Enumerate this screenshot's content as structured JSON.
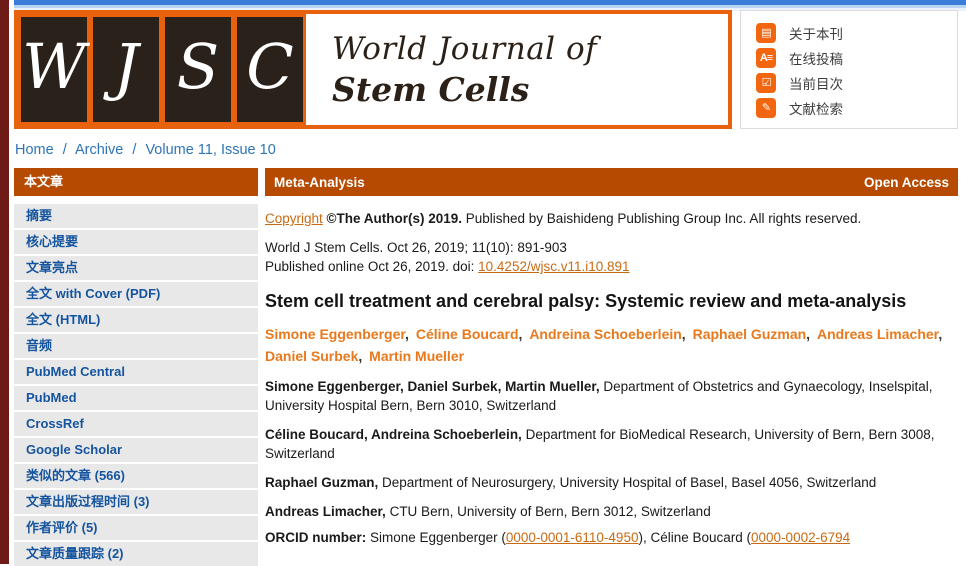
{
  "colors": {
    "left_strip_maroon": "#6E1B18",
    "top_bar_blue": "#3B7CD8",
    "brand_orange": "#E8620E",
    "icon_orange": "#F2660F",
    "section_bar_rust": "#B54A00",
    "link_orange": "#C96A12",
    "author_orange": "#E8791C",
    "sidebar_link_blue": "#15549E",
    "breadcrumb_blue": "#2E74B5"
  },
  "header": {
    "logo_letters": [
      "W",
      "J",
      "S",
      "C"
    ],
    "journal_name_line1": "World Journal of",
    "journal_name_line2": "Stem Cells",
    "menu": [
      {
        "label": "关于本刊",
        "icon": "about-journal-icon",
        "glyph": "▤"
      },
      {
        "label": "在线投稿",
        "icon": "online-submission-icon",
        "glyph": "A≡"
      },
      {
        "label": "当前目次",
        "icon": "current-issue-icon",
        "glyph": "☑"
      },
      {
        "label": "文献检索",
        "icon": "literature-search-icon",
        "glyph": "✎"
      }
    ]
  },
  "breadcrumb": {
    "separator": "/",
    "items": [
      "Home",
      "Archive",
      "Volume 11, Issue 10"
    ]
  },
  "sidebar": {
    "header": "本文章",
    "items": [
      "摘要",
      "核心提要",
      "文章亮点",
      "全文 with Cover (PDF)",
      "全文 (HTML)",
      "音频",
      "PubMed Central",
      "PubMed",
      "CrossRef",
      "Google Scholar",
      "类似的文章 (566)",
      "文章出版过程时间 (3)",
      "作者评价 (5)",
      "文章质量跟踪 (2)"
    ]
  },
  "main": {
    "article_type": "Meta-Analysis",
    "access_label": "Open Access",
    "authors_separator": ", ",
    "copyright": {
      "link_text": "Copyright",
      "bold_text": " ©The Author(s) 2019.",
      "rest_text": " Published by Baishideng Publishing Group Inc. All rights reserved."
    },
    "citation": {
      "line1": "World J Stem Cells. Oct 26, 2019; 11(10): 891-903",
      "line2_prefix": "Published online Oct 26, 2019. doi: ",
      "doi_link": "10.4252/wjsc.v11.i10.891"
    },
    "title": "Stem cell treatment and cerebral palsy: Systemic review and meta-analysis",
    "authors": [
      "Simone Eggenberger",
      "Céline Boucard",
      "Andreina Schoeberlein",
      "Raphael Guzman",
      "Andreas Limacher",
      "Daniel Surbek",
      "Martin Mueller"
    ],
    "affiliations": [
      {
        "names": "Simone Eggenberger, Daniel Surbek, Martin Mueller,",
        "detail": " Department of Obstetrics and Gynaecology, Inselspital, University Hospital Bern, Bern 3010, Switzerland"
      },
      {
        "names": "Céline Boucard, Andreina Schoeberlein,",
        "detail": " Department for BioMedical Research, University of Bern, Bern 3008, Switzerland"
      },
      {
        "names": "Raphael Guzman,",
        "detail": " Department of Neurosurgery, University Hospital of Basel, Basel 4056, Switzerland"
      },
      {
        "names": "Andreas Limacher,",
        "detail": " CTU Bern, University of Bern, Bern 3012, Switzerland"
      }
    ],
    "orcid": {
      "label": "ORCID number:",
      "text_1": " Simone Eggenberger (",
      "link_1": "0000-0001-6110-4950",
      "text_2": "), Céline Boucard (",
      "link_2": "0000-0002-6794"
    }
  }
}
